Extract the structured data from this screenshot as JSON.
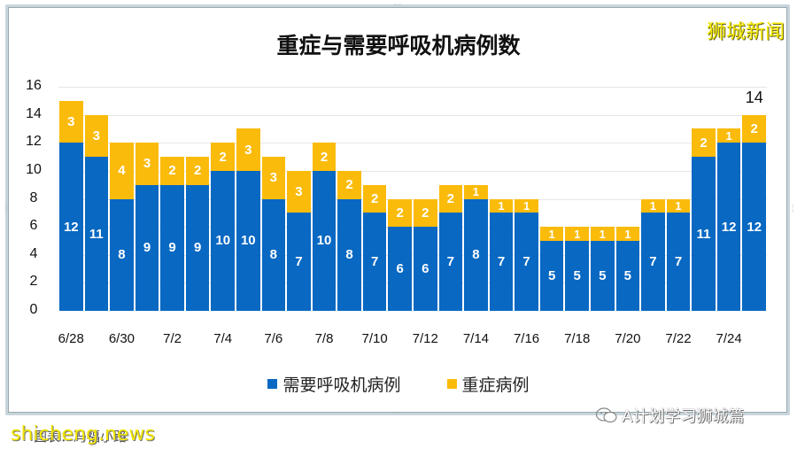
{
  "header": {
    "title": "重症与需要呼吸机病例数",
    "brand_watermark": "狮城新闻"
  },
  "chart_data": {
    "type": "bar",
    "stacked": true,
    "title": "重症与需要呼吸机病例数",
    "xlabel": "",
    "ylabel": "",
    "ylim": [
      0,
      16
    ],
    "yticks": [
      0,
      2,
      4,
      6,
      8,
      10,
      12,
      14,
      16
    ],
    "grid": true,
    "legend_position": "bottom",
    "categories": [
      "6/28",
      "6/29",
      "6/30",
      "7/1",
      "7/2",
      "7/3",
      "7/4",
      "7/5",
      "7/6",
      "7/7",
      "7/8",
      "7/9",
      "7/10",
      "7/11",
      "7/12",
      "7/13",
      "7/14",
      "7/15",
      "7/16",
      "7/17",
      "7/18",
      "7/19",
      "7/20",
      "7/21",
      "7/22",
      "7/23",
      "7/24",
      "7/25"
    ],
    "xtick_labels": [
      "6/28",
      "6/30",
      "7/2",
      "7/4",
      "7/6",
      "7/8",
      "7/10",
      "7/12",
      "7/14",
      "7/16",
      "7/18",
      "7/20",
      "7/22",
      "7/24"
    ],
    "series": [
      {
        "name": "需要呼吸机病例",
        "color": "#0868c2",
        "values": [
          12,
          11,
          8,
          9,
          9,
          9,
          10,
          10,
          8,
          7,
          10,
          8,
          7,
          6,
          6,
          7,
          8,
          7,
          7,
          5,
          5,
          5,
          5,
          7,
          7,
          11,
          12,
          12
        ]
      },
      {
        "name": "重症病例",
        "color": "#fbbb0b",
        "values": [
          3,
          3,
          4,
          3,
          2,
          2,
          2,
          3,
          3,
          3,
          2,
          2,
          2,
          2,
          2,
          2,
          1,
          1,
          1,
          1,
          1,
          1,
          1,
          1,
          1,
          2,
          1,
          2
        ]
      }
    ],
    "annotations": [
      {
        "category": "7/25",
        "text": "14"
      }
    ]
  },
  "yaxis": {
    "labels": [
      "0",
      "2",
      "4",
      "6",
      "8",
      "10",
      "12",
      "14",
      "16"
    ]
  },
  "legend": {
    "items": [
      {
        "label": "需要呼吸机病例",
        "color": "#0868c2"
      },
      {
        "label": "重症病例",
        "color": "#fbbb0b"
      }
    ]
  },
  "annotation_total": "14",
  "footer": {
    "watermark_left": "shicheng.news",
    "note": "图表：冯福小路",
    "watermark_right": "A计划学习狮城篇"
  }
}
